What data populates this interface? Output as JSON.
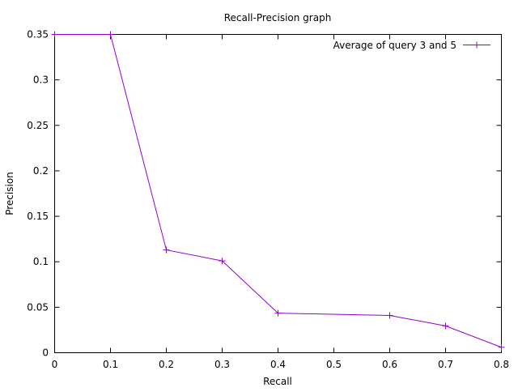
{
  "chart_data": {
    "type": "line",
    "title": "Recall-Precision graph",
    "xlabel": "Recall",
    "ylabel": "Precision",
    "xlim": [
      0,
      0.8
    ],
    "ylim": [
      0,
      0.35
    ],
    "x_ticks": [
      0,
      0.1,
      0.2,
      0.3,
      0.4,
      0.5,
      0.6,
      0.7,
      0.8
    ],
    "x_tick_labels": [
      "0",
      "0.1",
      "0.2",
      "0.3",
      "0.4",
      "0.5",
      "0.6",
      "0.7",
      "0.8"
    ],
    "y_ticks": [
      0,
      0.05,
      0.1,
      0.15,
      0.2,
      0.25,
      0.3,
      0.35
    ],
    "y_tick_labels": [
      "0",
      "0.05",
      "0.1",
      "0.15",
      "0.2",
      "0.25",
      "0.3",
      "0.35"
    ],
    "grid": false,
    "legend_position": "top-right",
    "series": [
      {
        "name": "Average of query 3 and 5",
        "color": "#9400d3",
        "marker": "plus",
        "x": [
          0,
          0.1,
          0.2,
          0.3,
          0.4,
          0.6,
          0.7,
          0.8
        ],
        "y": [
          0.35,
          0.35,
          0.113,
          0.101,
          0.0435,
          0.041,
          0.0295,
          0.006
        ]
      }
    ]
  }
}
